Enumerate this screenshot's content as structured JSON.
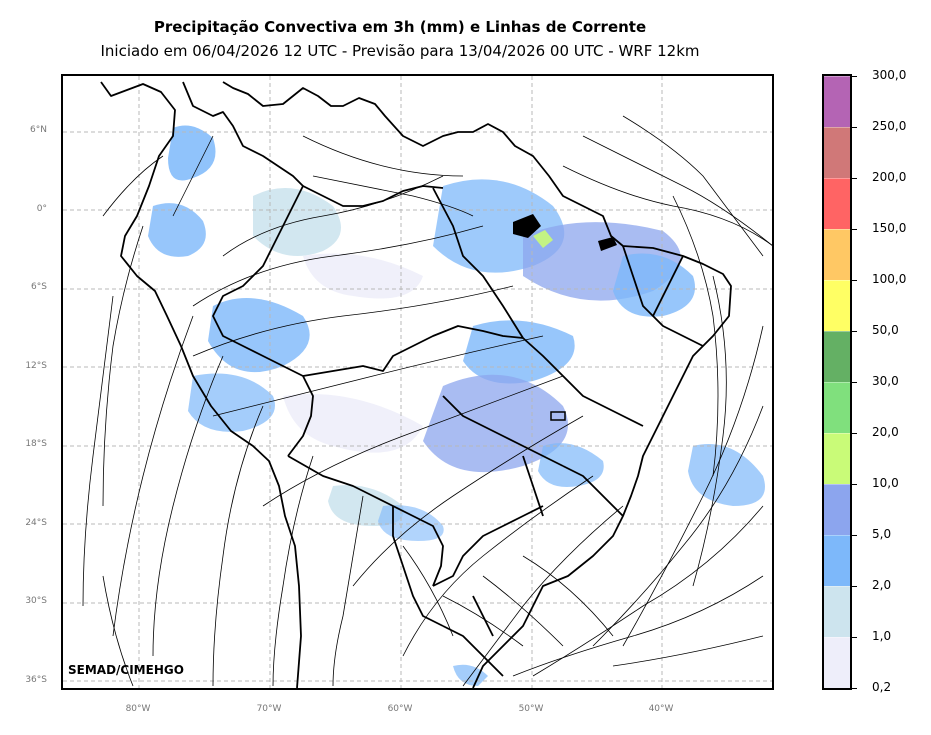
{
  "title": "Precipitação Convectiva em 3h (mm) e Linhas de Corrente",
  "subtitle": "Iniciado em 06/04/2026 12 UTC - Previsão para 13/04/2026 00 UTC - WRF 12km",
  "credit": "SEMAD/CIMEHGO",
  "lat_labels": [
    "6°N",
    "0°",
    "6°S",
    "12°S",
    "18°S",
    "24°S",
    "30°S",
    "36°S"
  ],
  "lon_labels": [
    "80°W",
    "70°W",
    "60°W",
    "50°W",
    "40°W"
  ],
  "colorbar": {
    "levels": [
      "0,2",
      "1,0",
      "2,0",
      "5,0",
      "10,0",
      "20,0",
      "30,0",
      "50,0",
      "100,0",
      "150,0",
      "200,0",
      "250,0",
      "300,0"
    ],
    "colors": [
      "#eeeefa",
      "#cde4ee",
      "#7db8fa",
      "#8ca5ee",
      "#c9fb78",
      "#80e07d",
      "#64b064",
      "#ffff64",
      "#ffc864",
      "#ff6464",
      "#d07878",
      "#b464b4"
    ]
  }
}
